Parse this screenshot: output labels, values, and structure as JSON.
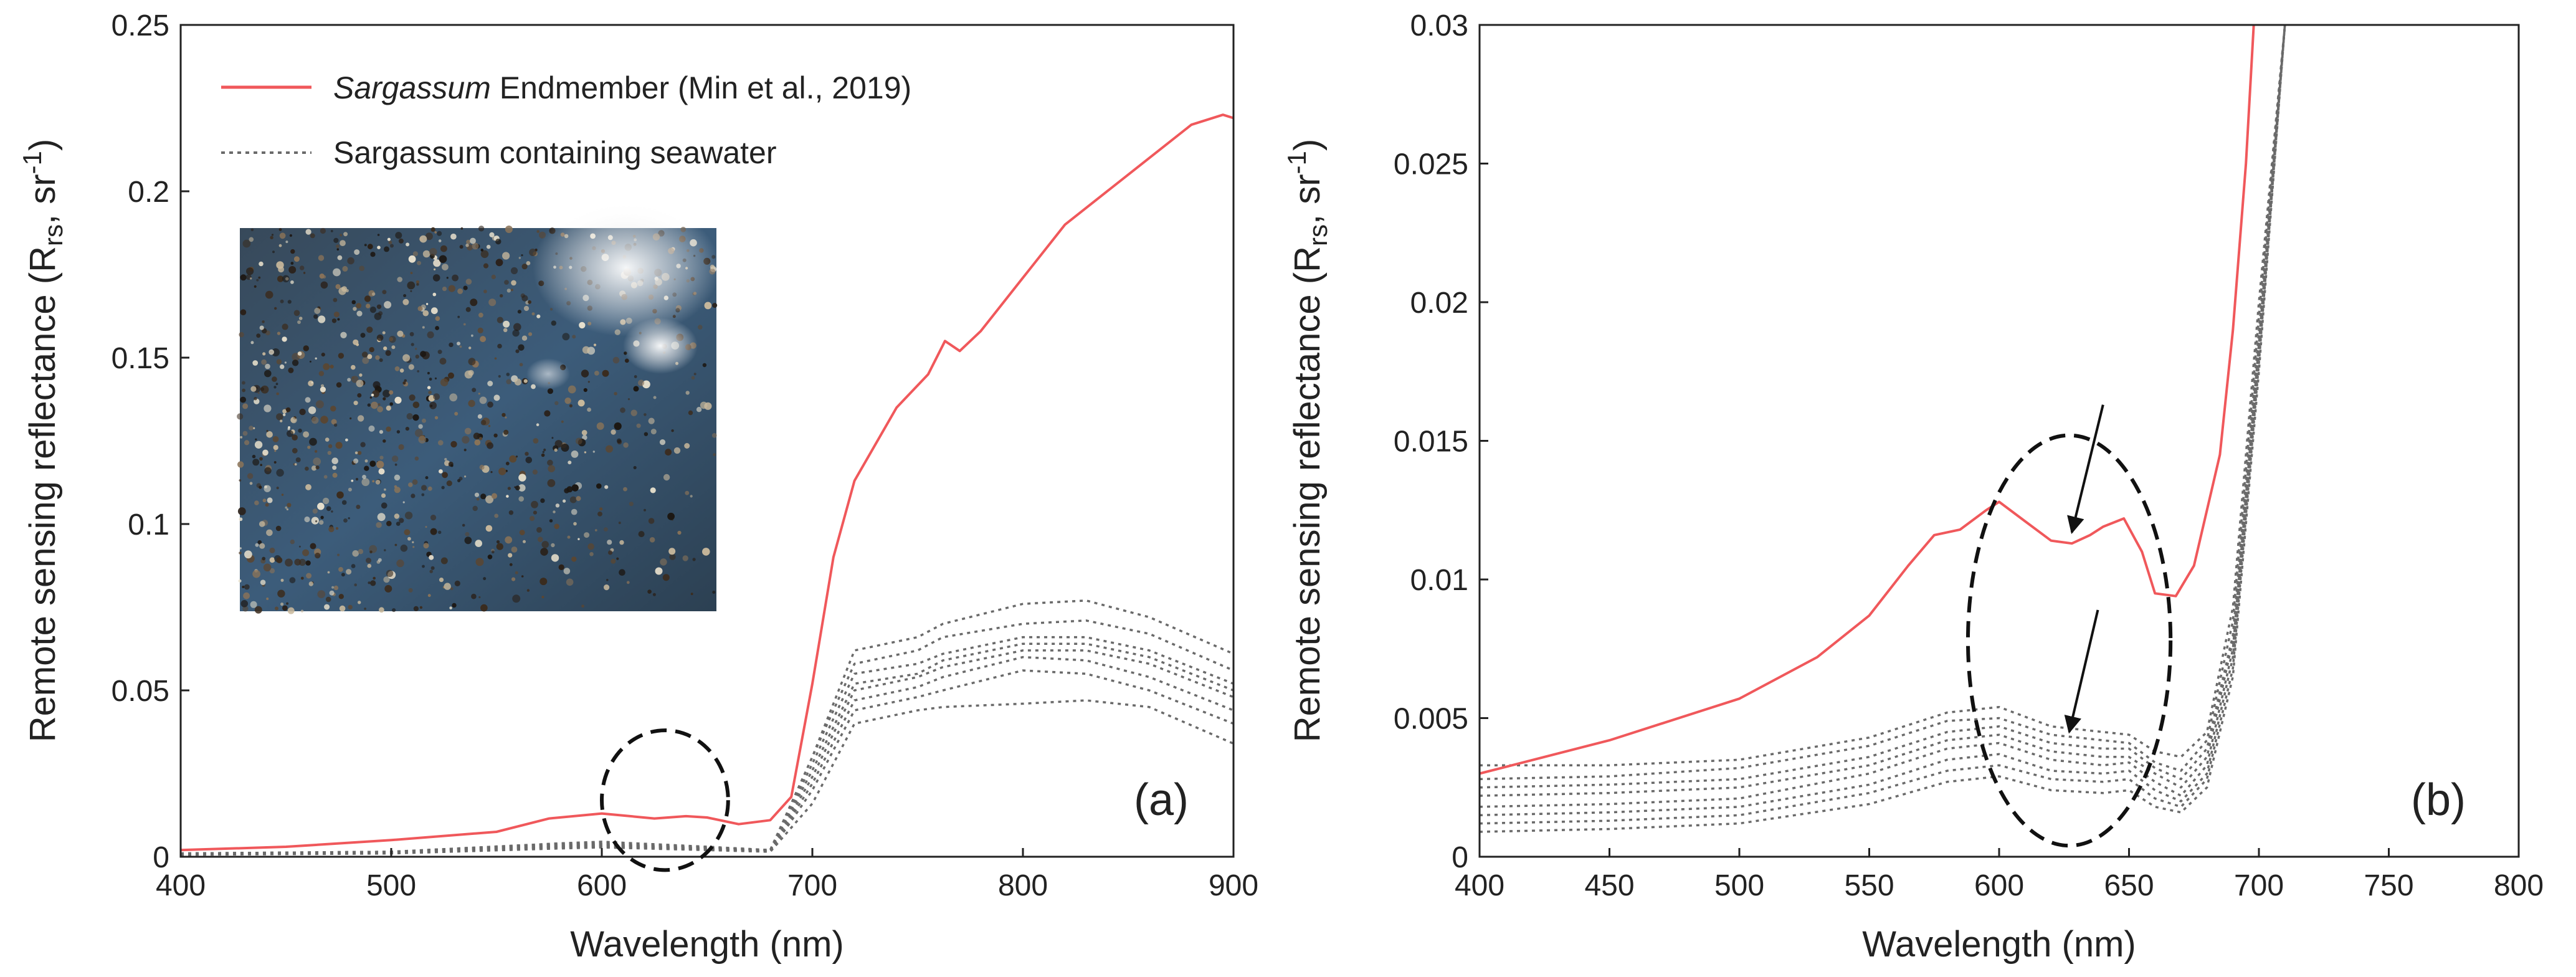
{
  "chart_data": [
    {
      "type": "line",
      "panel_label": "(a)",
      "xlabel": "Wavelength (nm)",
      "ylabel": {
        "main": "Remote sensing reflectance (R",
        "sub": "rs",
        "tail": ", sr",
        "sup": "-1",
        "end": ")"
      },
      "xlim": [
        400,
        900
      ],
      "ylim": [
        0,
        0.25
      ],
      "xticks": [
        "400",
        "500",
        "600",
        "700",
        "800",
        "900"
      ],
      "yticks": [
        "0",
        "0.05",
        "0.1",
        "0.15",
        "0.2",
        "0.25"
      ],
      "legend": {
        "placement": "top-left",
        "entries": [
          {
            "italic": "Sargassum",
            "text": " Endmember (Min et al., 2019)",
            "style": "solid",
            "color": "#f0585b"
          },
          {
            "italic": "",
            "text": "Sargassum containing seawater",
            "style": "dotted",
            "color": "#6a6a6a"
          }
        ]
      },
      "inset_photo": true,
      "annotation": {
        "shape": "dashed-ellipse",
        "center": [
          630,
          0.017
        ],
        "radii": [
          30,
          0.021
        ]
      },
      "series": [
        {
          "name": "Sargassum Endmember (Min et al., 2019)",
          "color": "#f0585b",
          "style": "solid",
          "x": [
            400,
            450,
            500,
            550,
            575,
            600,
            625,
            640,
            650,
            665,
            680,
            690,
            700,
            710,
            720,
            740,
            755,
            763,
            770,
            780,
            800,
            820,
            850,
            880,
            895,
            900
          ],
          "y": [
            0.002,
            0.003,
            0.005,
            0.0075,
            0.0115,
            0.013,
            0.0115,
            0.0122,
            0.0118,
            0.0098,
            0.011,
            0.018,
            0.052,
            0.09,
            0.113,
            0.135,
            0.145,
            0.155,
            0.152,
            0.158,
            0.174,
            0.19,
            0.205,
            0.22,
            0.223,
            0.222
          ]
        },
        {
          "color": "#6a6a6a",
          "style": "dotted",
          "x": [
            400,
            500,
            580,
            600,
            650,
            680,
            700,
            720,
            750,
            762,
            800,
            830,
            860,
            900
          ],
          "y": [
            0.001,
            0.0015,
            0.004,
            0.0045,
            0.003,
            0.002,
            0.03,
            0.062,
            0.066,
            0.07,
            0.076,
            0.077,
            0.072,
            0.061
          ]
        },
        {
          "color": "#6a6a6a",
          "style": "dotted",
          "x": [
            400,
            500,
            580,
            600,
            650,
            680,
            700,
            720,
            750,
            762,
            800,
            830,
            860,
            900
          ],
          "y": [
            0.001,
            0.0015,
            0.004,
            0.0045,
            0.003,
            0.002,
            0.03,
            0.058,
            0.062,
            0.066,
            0.07,
            0.071,
            0.067,
            0.056
          ]
        },
        {
          "color": "#6a6a6a",
          "style": "dotted",
          "x": [
            400,
            500,
            580,
            600,
            650,
            680,
            700,
            720,
            750,
            762,
            800,
            830,
            860,
            900
          ],
          "y": [
            0.001,
            0.0015,
            0.0035,
            0.004,
            0.0028,
            0.002,
            0.028,
            0.055,
            0.058,
            0.061,
            0.066,
            0.066,
            0.062,
            0.052
          ]
        },
        {
          "color": "#6a6a6a",
          "style": "dotted",
          "x": [
            400,
            500,
            580,
            600,
            650,
            680,
            700,
            720,
            750,
            762,
            800,
            830,
            860,
            900
          ],
          "y": [
            0.001,
            0.0014,
            0.0035,
            0.0038,
            0.0026,
            0.002,
            0.026,
            0.052,
            0.055,
            0.059,
            0.064,
            0.064,
            0.06,
            0.05
          ]
        },
        {
          "color": "#6a6a6a",
          "style": "dotted",
          "x": [
            400,
            500,
            580,
            600,
            650,
            680,
            700,
            720,
            750,
            762,
            800,
            830,
            860,
            900
          ],
          "y": [
            0.0008,
            0.0013,
            0.003,
            0.0035,
            0.0025,
            0.0018,
            0.024,
            0.05,
            0.054,
            0.057,
            0.062,
            0.062,
            0.058,
            0.048
          ]
        },
        {
          "color": "#6a6a6a",
          "style": "dotted",
          "x": [
            400,
            500,
            580,
            600,
            650,
            680,
            700,
            720,
            750,
            762,
            800,
            830,
            860,
            900
          ],
          "y": [
            0.0008,
            0.0012,
            0.003,
            0.0033,
            0.0024,
            0.0017,
            0.022,
            0.047,
            0.051,
            0.054,
            0.06,
            0.059,
            0.054,
            0.044
          ]
        },
        {
          "color": "#6a6a6a",
          "style": "dotted",
          "x": [
            400,
            500,
            580,
            600,
            650,
            680,
            700,
            720,
            750,
            762,
            800,
            830,
            860,
            900
          ],
          "y": [
            0.0007,
            0.0011,
            0.0028,
            0.003,
            0.0022,
            0.0016,
            0.02,
            0.044,
            0.048,
            0.05,
            0.056,
            0.055,
            0.05,
            0.04
          ]
        },
        {
          "color": "#6a6a6a",
          "style": "dotted",
          "x": [
            400,
            500,
            580,
            600,
            650,
            680,
            700,
            720,
            750,
            762,
            800,
            830,
            860,
            900
          ],
          "y": [
            0.0006,
            0.001,
            0.0025,
            0.0028,
            0.002,
            0.0015,
            0.016,
            0.04,
            0.044,
            0.045,
            0.046,
            0.047,
            0.045,
            0.034
          ]
        }
      ]
    },
    {
      "type": "line",
      "panel_label": "(b)",
      "xlabel": "Wavelength (nm)",
      "ylabel": {
        "main": "Remote sensing reflectance (R",
        "sub": "rs",
        "tail": ", sr",
        "sup": "-1",
        "end": ")"
      },
      "xlim": [
        400,
        800
      ],
      "ylim": [
        0,
        0.03
      ],
      "xticks": [
        "400",
        "450",
        "500",
        "550",
        "600",
        "650",
        "700",
        "750",
        "800"
      ],
      "yticks": [
        "0",
        "0.005",
        "0.01",
        "0.015",
        "0.02",
        "0.025",
        "0.03"
      ],
      "annotation": {
        "shape": "dashed-ellipse",
        "center": [
          627,
          0.0078
        ],
        "radii": [
          39,
          0.0074
        ]
      },
      "arrows": [
        {
          "from": [
            640,
            0.0163
          ],
          "to": [
            628,
            0.0117
          ]
        },
        {
          "from": [
            638,
            0.0089
          ],
          "to": [
            627,
            0.0045
          ]
        }
      ],
      "series": [
        {
          "name": "Sargassum Endmember (Min et al., 2019)",
          "color": "#f0585b",
          "style": "solid",
          "x": [
            400,
            450,
            500,
            530,
            550,
            565,
            575,
            585,
            595,
            600,
            610,
            620,
            628,
            635,
            640,
            648,
            655,
            660,
            668,
            675,
            685,
            690,
            695,
            698
          ],
          "y": [
            0.003,
            0.0042,
            0.0057,
            0.0072,
            0.0087,
            0.0105,
            0.0116,
            0.0118,
            0.0125,
            0.0128,
            0.0121,
            0.0114,
            0.0113,
            0.0116,
            0.0119,
            0.0122,
            0.011,
            0.0095,
            0.0094,
            0.0105,
            0.0145,
            0.019,
            0.025,
            0.03
          ]
        },
        {
          "color": "#6a6a6a",
          "style": "dotted",
          "x": [
            400,
            450,
            500,
            550,
            580,
            600,
            620,
            640,
            650,
            660,
            670,
            680,
            690,
            700,
            710
          ],
          "y": [
            0.0033,
            0.0033,
            0.0035,
            0.0043,
            0.0052,
            0.0054,
            0.0047,
            0.0045,
            0.0044,
            0.0038,
            0.0036,
            0.0045,
            0.009,
            0.02,
            0.03
          ]
        },
        {
          "color": "#6a6a6a",
          "style": "dotted",
          "x": [
            400,
            450,
            500,
            550,
            580,
            600,
            620,
            640,
            650,
            660,
            670,
            680,
            690,
            700,
            710
          ],
          "y": [
            0.0028,
            0.0029,
            0.0032,
            0.004,
            0.0049,
            0.005,
            0.0044,
            0.0042,
            0.0041,
            0.0034,
            0.0031,
            0.0042,
            0.0085,
            0.0195,
            0.03
          ]
        },
        {
          "color": "#6a6a6a",
          "style": "dotted",
          "x": [
            400,
            450,
            500,
            550,
            580,
            600,
            620,
            640,
            650,
            660,
            670,
            680,
            690,
            700,
            710
          ],
          "y": [
            0.0025,
            0.0026,
            0.0028,
            0.0036,
            0.0045,
            0.0047,
            0.0041,
            0.0039,
            0.0039,
            0.0032,
            0.0028,
            0.0039,
            0.008,
            0.019,
            0.03
          ]
        },
        {
          "color": "#6a6a6a",
          "style": "dotted",
          "x": [
            400,
            450,
            500,
            550,
            580,
            600,
            620,
            640,
            650,
            660,
            670,
            680,
            690,
            700,
            710
          ],
          "y": [
            0.0022,
            0.0023,
            0.0025,
            0.0033,
            0.0042,
            0.0044,
            0.0038,
            0.0036,
            0.0036,
            0.003,
            0.0025,
            0.0036,
            0.0078,
            0.0188,
            0.03
          ]
        },
        {
          "color": "#6a6a6a",
          "style": "dotted",
          "x": [
            400,
            450,
            500,
            550,
            580,
            600,
            620,
            640,
            650,
            660,
            670,
            680,
            690,
            700,
            710
          ],
          "y": [
            0.0018,
            0.0019,
            0.0021,
            0.003,
            0.0039,
            0.0041,
            0.0035,
            0.0033,
            0.0034,
            0.0027,
            0.0022,
            0.0033,
            0.0075,
            0.0185,
            0.03
          ]
        },
        {
          "color": "#6a6a6a",
          "style": "dotted",
          "x": [
            400,
            450,
            500,
            550,
            580,
            600,
            620,
            640,
            650,
            660,
            670,
            680,
            690,
            700,
            710
          ],
          "y": [
            0.0015,
            0.0016,
            0.0018,
            0.0026,
            0.0035,
            0.0037,
            0.0031,
            0.003,
            0.0031,
            0.0024,
            0.002,
            0.003,
            0.0072,
            0.018,
            0.03
          ]
        },
        {
          "color": "#6a6a6a",
          "style": "dotted",
          "x": [
            400,
            450,
            500,
            550,
            580,
            600,
            620,
            640,
            650,
            660,
            670,
            680,
            690,
            700,
            710
          ],
          "y": [
            0.0012,
            0.0013,
            0.0015,
            0.0023,
            0.0031,
            0.0033,
            0.0028,
            0.0027,
            0.0028,
            0.0021,
            0.0018,
            0.0028,
            0.0068,
            0.0178,
            0.03
          ]
        },
        {
          "color": "#6a6a6a",
          "style": "dotted",
          "x": [
            400,
            450,
            500,
            550,
            580,
            600,
            620,
            640,
            650,
            660,
            670,
            680,
            690,
            700,
            710
          ],
          "y": [
            0.0009,
            0.001,
            0.0012,
            0.0019,
            0.0027,
            0.0029,
            0.0024,
            0.0023,
            0.0024,
            0.0018,
            0.0016,
            0.0025,
            0.0065,
            0.0175,
            0.03
          ]
        }
      ]
    }
  ]
}
